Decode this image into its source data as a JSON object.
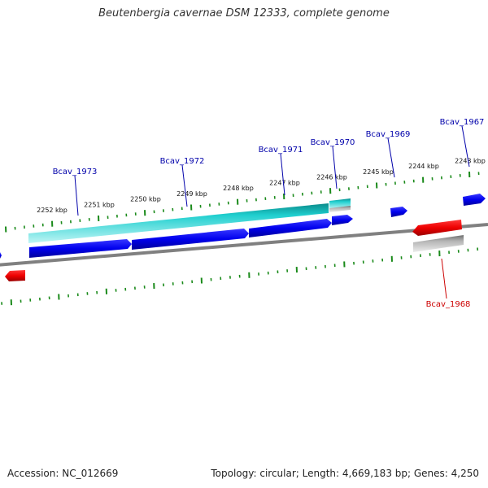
{
  "title": "Beutenbergia cavernae DSM 12333, complete genome",
  "accession_label": "Accession: NC_012669",
  "summary": "Topology: circular; Length: 4,669,183 bp; Genes: 4,250",
  "colors": {
    "tick": "#1a8a1a",
    "backbone": "#808080",
    "forward_gene": "#0000ee",
    "reverse_gene": "#ee0000",
    "cds_band": "#1fcfcf",
    "pseudo_band": "#b4b4b4",
    "forward_label": "#0000aa",
    "reverse_label": "#cc0000"
  },
  "scale_labels": [
    "2252 kbp",
    "2251 kbp",
    "2250 kbp",
    "2249 kbp",
    "2248 kbp",
    "2247 kbp",
    "2246 kbp",
    "2245 kbp",
    "2244 kbp",
    "2243 kbp"
  ],
  "genes": [
    {
      "name": "Bcav_1973",
      "strand": "forward"
    },
    {
      "name": "Bcav_1972",
      "strand": "forward"
    },
    {
      "name": "Bcav_1971",
      "strand": "forward"
    },
    {
      "name": "Bcav_1970",
      "strand": "forward"
    },
    {
      "name": "Bcav_1969",
      "strand": "forward"
    },
    {
      "name": "Bcav_1967",
      "strand": "forward"
    },
    {
      "name": "Bcav_1968",
      "strand": "reverse"
    }
  ]
}
